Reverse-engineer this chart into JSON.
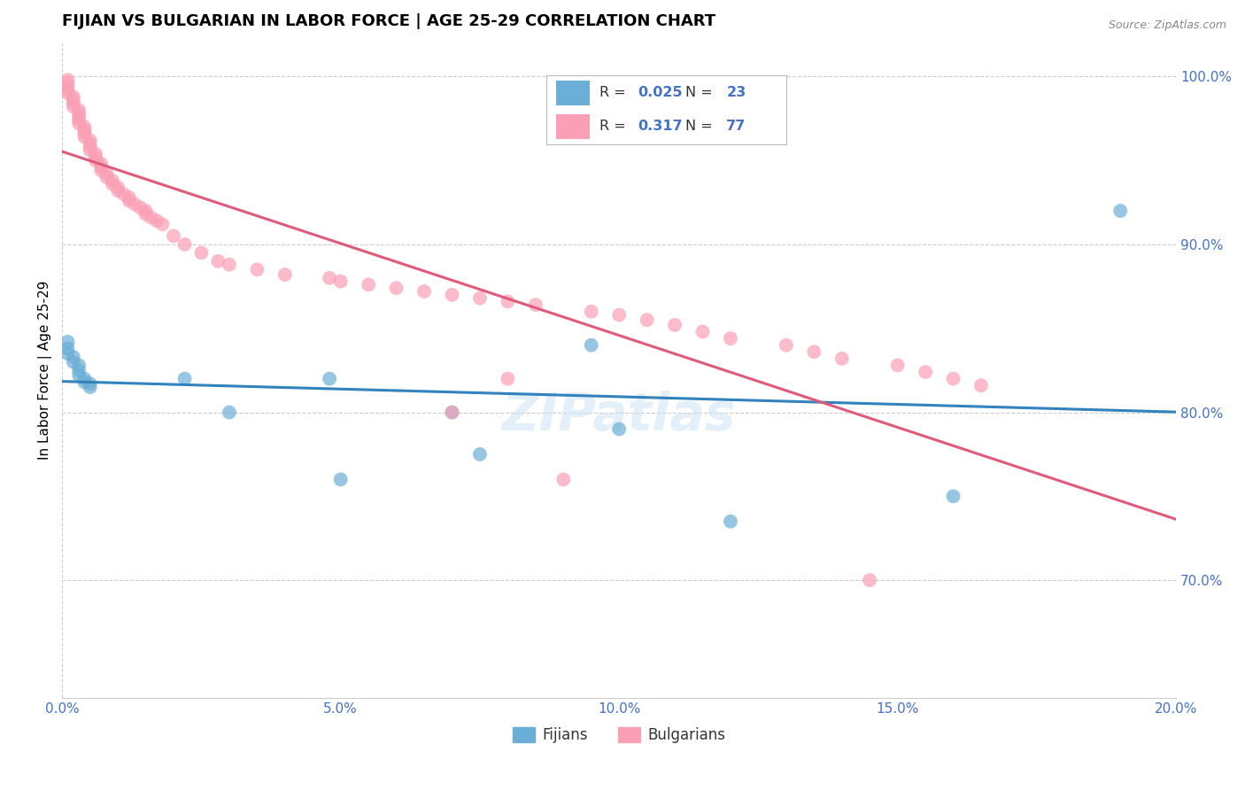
{
  "title": "FIJIAN VS BULGARIAN IN LABOR FORCE | AGE 25-29 CORRELATION CHART",
  "source_text": "Source: ZipAtlas.com",
  "ylabel": "In Labor Force | Age 25-29",
  "xlim": [
    0.0,
    0.2
  ],
  "ylim": [
    0.63,
    1.02
  ],
  "yticks": [
    0.7,
    0.8,
    0.9,
    1.0
  ],
  "ytick_labels": [
    "70.0%",
    "80.0%",
    "90.0%",
    "100.0%"
  ],
  "xticks": [
    0.0,
    0.05,
    0.1,
    0.15,
    0.2
  ],
  "xtick_labels": [
    "0.0%",
    "5.0%",
    "10.0%",
    "15.0%",
    "20.0%"
  ],
  "fijian_color": "#6baed6",
  "bulgarian_color": "#fa9fb5",
  "fijian_line_color": "#3182bd",
  "bulgarian_line_color": "#e05a7a",
  "fijian_R": 0.025,
  "fijian_N": 23,
  "bulgarian_R": 0.317,
  "bulgarian_N": 77,
  "watermark": "ZIPatlas",
  "title_fontsize": 13,
  "axis_label_fontsize": 11,
  "tick_fontsize": 11,
  "fijian_x": [
    0.001,
    0.001,
    0.001,
    0.002,
    0.002,
    0.003,
    0.003,
    0.003,
    0.004,
    0.004,
    0.005,
    0.005,
    0.022,
    0.03,
    0.048,
    0.05,
    0.07,
    0.075,
    0.095,
    0.1,
    0.12,
    0.16,
    0.19
  ],
  "fijian_y": [
    0.842,
    0.838,
    0.835,
    0.833,
    0.83,
    0.828,
    0.825,
    0.822,
    0.82,
    0.818,
    0.817,
    0.815,
    0.82,
    0.8,
    0.82,
    0.76,
    0.8,
    0.775,
    0.84,
    0.79,
    0.735,
    0.75,
    0.92
  ],
  "bulgarian_x": [
    0.001,
    0.001,
    0.001,
    0.001,
    0.001,
    0.002,
    0.002,
    0.002,
    0.002,
    0.003,
    0.003,
    0.003,
    0.003,
    0.003,
    0.004,
    0.004,
    0.004,
    0.004,
    0.005,
    0.005,
    0.005,
    0.005,
    0.006,
    0.006,
    0.006,
    0.007,
    0.007,
    0.007,
    0.008,
    0.008,
    0.009,
    0.009,
    0.01,
    0.01,
    0.011,
    0.012,
    0.012,
    0.013,
    0.014,
    0.015,
    0.015,
    0.016,
    0.017,
    0.018,
    0.02,
    0.022,
    0.025,
    0.028,
    0.03,
    0.035,
    0.04,
    0.048,
    0.05,
    0.055,
    0.06,
    0.065,
    0.07,
    0.07,
    0.075,
    0.08,
    0.08,
    0.085,
    0.09,
    0.095,
    0.1,
    0.105,
    0.11,
    0.115,
    0.12,
    0.13,
    0.135,
    0.14,
    0.145,
    0.15,
    0.155,
    0.16,
    0.165
  ],
  "bulgarian_y": [
    0.998,
    0.996,
    0.994,
    0.992,
    0.99,
    0.988,
    0.986,
    0.984,
    0.982,
    0.98,
    0.978,
    0.976,
    0.974,
    0.972,
    0.97,
    0.968,
    0.966,
    0.964,
    0.962,
    0.96,
    0.958,
    0.956,
    0.954,
    0.952,
    0.95,
    0.948,
    0.946,
    0.944,
    0.942,
    0.94,
    0.938,
    0.936,
    0.934,
    0.932,
    0.93,
    0.928,
    0.926,
    0.924,
    0.922,
    0.92,
    0.918,
    0.916,
    0.914,
    0.912,
    0.905,
    0.9,
    0.895,
    0.89,
    0.888,
    0.885,
    0.882,
    0.88,
    0.878,
    0.876,
    0.874,
    0.872,
    0.87,
    0.8,
    0.868,
    0.866,
    0.82,
    0.864,
    0.76,
    0.86,
    0.858,
    0.855,
    0.852,
    0.848,
    0.844,
    0.84,
    0.836,
    0.832,
    0.7,
    0.828,
    0.824,
    0.82,
    0.816
  ]
}
